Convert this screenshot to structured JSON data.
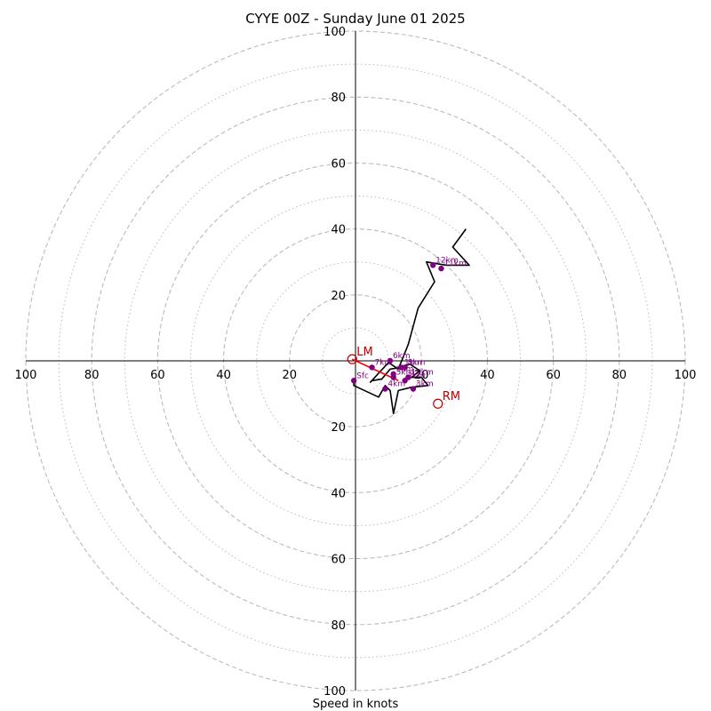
{
  "chart_data": {
    "type": "hodograph",
    "title": "CYYE 00Z - Sunday June 01 2025",
    "xlabel": "Speed in knots",
    "ring_range": [
      0,
      100
    ],
    "major_rings": [
      20,
      40,
      60,
      80,
      100
    ],
    "minor_rings": [
      10,
      30,
      50,
      70,
      90
    ],
    "x_tick_labels": [
      "100",
      "80",
      "60",
      "40",
      "20",
      "20",
      "40",
      "60",
      "80",
      "100"
    ],
    "y_tick_labels": [
      "100",
      "80",
      "60",
      "40",
      "20",
      "20",
      "40",
      "60",
      "80",
      "100"
    ],
    "grid": true,
    "hodograph_trace": [
      [
        -0.5,
        -6
      ],
      [
        -0.5,
        -7.5
      ],
      [
        7,
        -11
      ],
      [
        9,
        -7.5
      ],
      [
        10.5,
        -9
      ],
      [
        11.5,
        -16
      ],
      [
        13,
        -9
      ],
      [
        17,
        -8
      ],
      [
        22,
        -7.5
      ],
      [
        20,
        -5
      ],
      [
        17,
        -5
      ],
      [
        19.5,
        -3
      ],
      [
        16.5,
        -1
      ],
      [
        14,
        -2
      ],
      [
        10.5,
        -2.5
      ],
      [
        8,
        -5.5
      ],
      [
        5,
        -6
      ],
      [
        4.5,
        -6.5
      ],
      [
        10,
        -0.5
      ],
      [
        13,
        -2.5
      ],
      [
        16,
        5
      ],
      [
        19,
        16
      ],
      [
        24,
        24
      ],
      [
        21.5,
        30
      ],
      [
        27.5,
        29
      ],
      [
        34.5,
        29
      ],
      [
        29.5,
        34.5
      ],
      [
        33.5,
        40
      ]
    ],
    "height_points": [
      {
        "label": "Sfc",
        "u": -0.5,
        "v": -6
      },
      {
        "label": "1km",
        "u": 14,
        "v": -2
      },
      {
        "label": "2km",
        "u": 15,
        "v": -6
      },
      {
        "label": "3km",
        "u": 17.5,
        "v": -8.5
      },
      {
        "label": "4km",
        "u": 9,
        "v": -8.5
      },
      {
        "label": "5km",
        "u": 11.5,
        "v": -5
      },
      {
        "label": "6km",
        "u": 10.5,
        "v": 0
      },
      {
        "label": "7km",
        "u": 5,
        "v": -2
      },
      {
        "label": "8km",
        "u": 15,
        "v": -2
      },
      {
        "label": "9km",
        "u": 11.5,
        "v": -4
      },
      {
        "label": "10km",
        "u": 16,
        "v": -5
      },
      {
        "label": "11km",
        "u": 26,
        "v": 28
      },
      {
        "label": "12km",
        "u": 23.5,
        "v": 29
      }
    ],
    "storm_motion": [
      {
        "label": "LM",
        "u": -1,
        "v": 0.5
      },
      {
        "label": "RM",
        "u": 25,
        "v": -13
      }
    ],
    "mean_wind_vector": {
      "from": [
        -1,
        0.5
      ],
      "to": [
        13,
        -6
      ]
    },
    "colors": {
      "trace": "#000000",
      "points": "#800080",
      "storm": "#c00000",
      "grid": "#bbbbbb"
    }
  }
}
